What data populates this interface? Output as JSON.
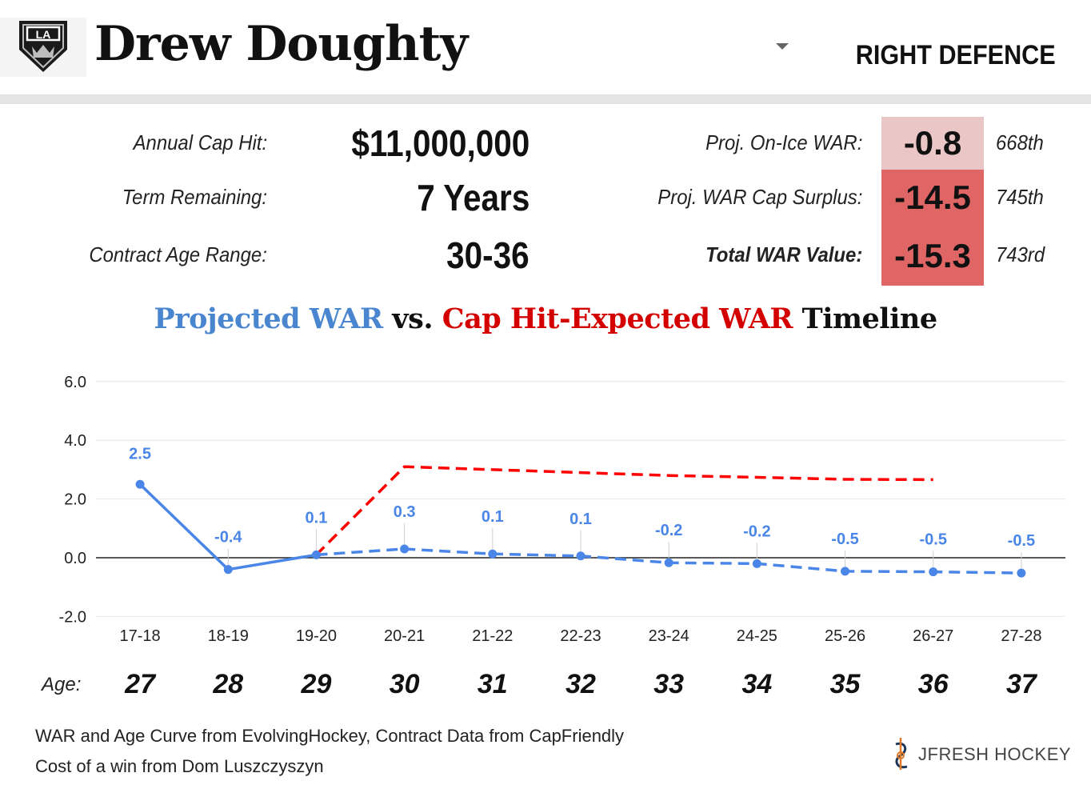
{
  "header": {
    "player_name": "Drew Doughty",
    "position": "RIGHT DEFENCE",
    "team_logo": "LA"
  },
  "contract": [
    {
      "label": "Annual Cap Hit:",
      "value": "$11,000,000"
    },
    {
      "label": "Term Remaining:",
      "value": "7 Years"
    },
    {
      "label": "Contract Age Range:",
      "value": "30-36"
    }
  ],
  "war": [
    {
      "label": "Proj. On-Ice WAR:",
      "value": "-0.8",
      "rank": "668th",
      "color": "#ebc6c6"
    },
    {
      "label": "Proj. WAR Cap Surplus:",
      "value": "-14.5",
      "rank": "745th",
      "color": "#e06666"
    },
    {
      "label": "Total WAR Value:",
      "value": "-15.3",
      "rank": "743rd",
      "color": "#e06666"
    }
  ],
  "chart_title": {
    "part1": "Projected WAR",
    "part2": " vs. ",
    "part3": "Cap Hit-Expected WAR",
    "part4": " Timeline",
    "color1": "#4a86d0",
    "color3": "#d40000"
  },
  "chart_data": {
    "type": "line",
    "categories": [
      "17-18",
      "18-19",
      "19-20",
      "20-21",
      "21-22",
      "22-23",
      "23-24",
      "24-25",
      "25-26",
      "26-27",
      "27-28"
    ],
    "ylim": [
      -2,
      6
    ],
    "yticks": [
      "6.0",
      "4.0",
      "2.0",
      "0.0",
      "-2.0"
    ],
    "ytick_values": [
      6,
      4,
      2,
      0,
      -2
    ],
    "series": [
      {
        "values": [
          2.5,
          -0.4,
          0.1,
          0.3,
          0.1,
          0.1,
          -0.2,
          -0.2,
          -0.5,
          -0.5,
          -0.5
        ],
        "plot_values": [
          2.5,
          -0.4,
          0.1,
          0.3,
          0.13,
          0.06,
          -0.17,
          -0.2,
          -0.46,
          -0.48,
          -0.52
        ],
        "labels": [
          "2.5",
          "-0.4",
          "0.1",
          "0.3",
          "0.1",
          "0.1",
          "-0.2",
          "-0.2",
          "-0.5",
          "-0.5",
          "-0.5"
        ],
        "color": "#4a86e8",
        "style": "solid through 19-20, dashed after"
      },
      {
        "values": [
          null,
          null,
          0.1,
          3.1,
          3.0,
          2.9,
          2.8,
          2.74,
          2.67,
          2.66,
          null
        ],
        "color": "#ff0000",
        "style": "dashed"
      }
    ],
    "grid": true
  },
  "ages": {
    "label": "Age:",
    "values": [
      "27",
      "28",
      "29",
      "30",
      "31",
      "32",
      "33",
      "34",
      "35",
      "36",
      "37"
    ]
  },
  "footer": {
    "source1": "WAR and Age Curve from EvolvingHockey, Contract Data from CapFriendly",
    "source2": "Cost of a win from Dom Luszczyszyn",
    "brand": "JFRESH HOCKEY"
  }
}
